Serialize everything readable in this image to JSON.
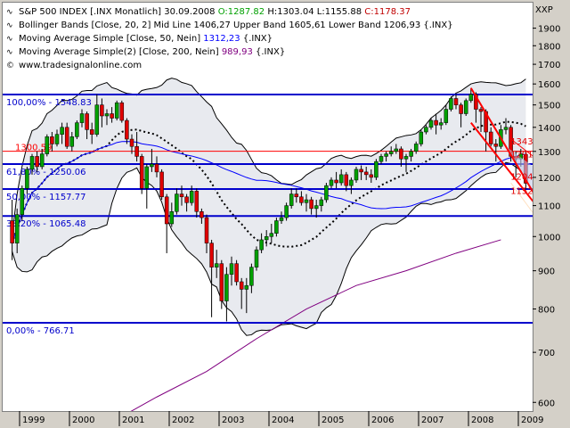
{
  "chart_data": {
    "type": "candlestick",
    "title": "S&P 500 INDEX [.INX  Monatlich]",
    "date": "30.09.2008",
    "ohlc_labels": {
      "open": "O:1287.82",
      "high": "H:1303.04",
      "low": "L:1155.88",
      "close": "C:1178.37"
    },
    "ohlc_colors": {
      "open": "#00a000",
      "close": "#c00000"
    },
    "currency_label": "XXP",
    "watermark": "www.tradesignalonline.com",
    "legend": [
      {
        "icon": "wave-icon",
        "text": "Bollinger Bands [Close, 20, 2] Mid Line 1406,27 Upper Band 1605,61 Lower Band 1206,93 {.INX}",
        "color": "#000000"
      },
      {
        "icon": "wave-icon",
        "text_prefix": "Moving Average Simple [Close, 50, Nein] ",
        "value": "1312,23",
        "suffix": " {.INX}",
        "color": "#0000ff"
      },
      {
        "icon": "wave-icon",
        "text_prefix": "Moving Average Simple(2) [Close, 200, Nein] ",
        "value": "989,93",
        "suffix": " {.INX}",
        "color": "#800080"
      }
    ],
    "y_axis": {
      "scale": "log",
      "ylim": [
        575,
        2000
      ],
      "ticks": [
        600,
        700,
        800,
        900,
        1000,
        1100,
        1200,
        1300,
        1400,
        1500,
        1600,
        1700,
        1800,
        1900
      ]
    },
    "x_axis": {
      "labels": [
        "1999",
        "2000",
        "2001",
        "2002",
        "2003",
        "2004",
        "2005",
        "2006",
        "2007",
        "2008",
        "2009"
      ],
      "start_year": 1998.5,
      "end_year": 2009.6
    },
    "fib_levels": [
      {
        "label": "100,00% - 1548.83",
        "value": 1548.83,
        "color": "#0000cc"
      },
      {
        "label": "61,80% - 1250.06",
        "value": 1250.06,
        "color": "#0000cc"
      },
      {
        "label": "50,00% - 1157.77",
        "value": 1157.77,
        "color": "#0000cc"
      },
      {
        "label": "38,20% - 1065.48",
        "value": 1065.48,
        "color": "#0000cc"
      },
      {
        "label": "0,00% - 766.71",
        "value": 766.71,
        "color": "#0000cc"
      }
    ],
    "red_line": {
      "label": "1300.59",
      "value": 1300.59,
      "color": "#ff0000"
    },
    "channel_labels": [
      {
        "label": "1343.52",
        "value": 1343.52
      },
      {
        "label": "1291.08",
        "value": 1291.08
      },
      {
        "label": "1204.25",
        "value": 1204.25
      },
      {
        "label": "1152.46",
        "value": 1152.46
      }
    ],
    "candles": [
      {
        "t": 1998.6,
        "o": 1050,
        "h": 1120,
        "l": 930,
        "c": 980
      },
      {
        "t": 1998.7,
        "o": 980,
        "h": 1090,
        "l": 950,
        "c": 1070
      },
      {
        "t": 1998.8,
        "o": 1070,
        "h": 1170,
        "l": 1050,
        "c": 1160
      },
      {
        "t": 1998.9,
        "o": 1160,
        "h": 1240,
        "l": 1140,
        "c": 1230
      },
      {
        "t": 1999.0,
        "o": 1230,
        "h": 1290,
        "l": 1210,
        "c": 1280
      },
      {
        "t": 1999.1,
        "o": 1280,
        "h": 1300,
        "l": 1220,
        "c": 1240
      },
      {
        "t": 1999.2,
        "o": 1240,
        "h": 1310,
        "l": 1230,
        "c": 1290
      },
      {
        "t": 1999.3,
        "o": 1290,
        "h": 1370,
        "l": 1280,
        "c": 1360
      },
      {
        "t": 1999.4,
        "o": 1360,
        "h": 1380,
        "l": 1300,
        "c": 1330
      },
      {
        "t": 1999.5,
        "o": 1330,
        "h": 1390,
        "l": 1320,
        "c": 1370
      },
      {
        "t": 1999.6,
        "o": 1370,
        "h": 1420,
        "l": 1330,
        "c": 1400
      },
      {
        "t": 1999.7,
        "o": 1400,
        "h": 1420,
        "l": 1310,
        "c": 1320
      },
      {
        "t": 1999.8,
        "o": 1320,
        "h": 1380,
        "l": 1300,
        "c": 1360
      },
      {
        "t": 1999.9,
        "o": 1360,
        "h": 1430,
        "l": 1350,
        "c": 1420
      },
      {
        "t": 2000.0,
        "o": 1420,
        "h": 1480,
        "l": 1400,
        "c": 1460
      },
      {
        "t": 2000.1,
        "o": 1460,
        "h": 1470,
        "l": 1350,
        "c": 1390
      },
      {
        "t": 2000.2,
        "o": 1390,
        "h": 1420,
        "l": 1330,
        "c": 1370
      },
      {
        "t": 2000.3,
        "o": 1370,
        "h": 1550,
        "l": 1360,
        "c": 1500
      },
      {
        "t": 2000.4,
        "o": 1500,
        "h": 1530,
        "l": 1400,
        "c": 1450
      },
      {
        "t": 2000.5,
        "o": 1450,
        "h": 1480,
        "l": 1410,
        "c": 1460
      },
      {
        "t": 2000.6,
        "o": 1460,
        "h": 1490,
        "l": 1420,
        "c": 1440
      },
      {
        "t": 2000.7,
        "o": 1440,
        "h": 1520,
        "l": 1430,
        "c": 1510
      },
      {
        "t": 2000.8,
        "o": 1510,
        "h": 1520,
        "l": 1420,
        "c": 1430
      },
      {
        "t": 2000.9,
        "o": 1430,
        "h": 1440,
        "l": 1330,
        "c": 1350
      },
      {
        "t": 2001.0,
        "o": 1350,
        "h": 1370,
        "l": 1290,
        "c": 1320
      },
      {
        "t": 2001.1,
        "o": 1320,
        "h": 1380,
        "l": 1260,
        "c": 1280
      },
      {
        "t": 2001.2,
        "o": 1280,
        "h": 1290,
        "l": 1140,
        "c": 1160
      },
      {
        "t": 2001.3,
        "o": 1160,
        "h": 1250,
        "l": 1090,
        "c": 1240
      },
      {
        "t": 2001.4,
        "o": 1240,
        "h": 1310,
        "l": 1220,
        "c": 1250
      },
      {
        "t": 2001.5,
        "o": 1250,
        "h": 1280,
        "l": 1200,
        "c": 1220
      },
      {
        "t": 2001.6,
        "o": 1220,
        "h": 1230,
        "l": 1120,
        "c": 1130
      },
      {
        "t": 2001.7,
        "o": 1130,
        "h": 1140,
        "l": 950,
        "c": 1040
      },
      {
        "t": 2001.8,
        "o": 1040,
        "h": 1110,
        "l": 1030,
        "c": 1080
      },
      {
        "t": 2001.9,
        "o": 1080,
        "h": 1160,
        "l": 1070,
        "c": 1140
      },
      {
        "t": 2002.0,
        "o": 1140,
        "h": 1170,
        "l": 1100,
        "c": 1130
      },
      {
        "t": 2002.1,
        "o": 1130,
        "h": 1140,
        "l": 1080,
        "c": 1110
      },
      {
        "t": 2002.2,
        "o": 1110,
        "h": 1170,
        "l": 1100,
        "c": 1150
      },
      {
        "t": 2002.3,
        "o": 1150,
        "h": 1160,
        "l": 1060,
        "c": 1080
      },
      {
        "t": 2002.4,
        "o": 1080,
        "h": 1090,
        "l": 1040,
        "c": 1060
      },
      {
        "t": 2002.5,
        "o": 1060,
        "h": 1070,
        "l": 950,
        "c": 980
      },
      {
        "t": 2002.6,
        "o": 980,
        "h": 990,
        "l": 780,
        "c": 910
      },
      {
        "t": 2002.7,
        "o": 910,
        "h": 960,
        "l": 880,
        "c": 920
      },
      {
        "t": 2002.8,
        "o": 920,
        "h": 930,
        "l": 800,
        "c": 820
      },
      {
        "t": 2002.9,
        "o": 820,
        "h": 910,
        "l": 770,
        "c": 890
      },
      {
        "t": 2003.0,
        "o": 890,
        "h": 940,
        "l": 860,
        "c": 920
      },
      {
        "t": 2003.1,
        "o": 920,
        "h": 930,
        "l": 860,
        "c": 870
      },
      {
        "t": 2003.2,
        "o": 870,
        "h": 880,
        "l": 800,
        "c": 850
      },
      {
        "t": 2003.3,
        "o": 850,
        "h": 880,
        "l": 790,
        "c": 860
      },
      {
        "t": 2003.4,
        "o": 860,
        "h": 920,
        "l": 840,
        "c": 910
      },
      {
        "t": 2003.5,
        "o": 910,
        "h": 970,
        "l": 900,
        "c": 960
      },
      {
        "t": 2003.6,
        "o": 960,
        "h": 1010,
        "l": 950,
        "c": 990
      },
      {
        "t": 2003.7,
        "o": 990,
        "h": 1020,
        "l": 970,
        "c": 1000
      },
      {
        "t": 2003.8,
        "o": 1000,
        "h": 1040,
        "l": 980,
        "c": 1010
      },
      {
        "t": 2003.9,
        "o": 1010,
        "h": 1060,
        "l": 1000,
        "c": 1050
      },
      {
        "t": 2004.0,
        "o": 1050,
        "h": 1080,
        "l": 1040,
        "c": 1060
      },
      {
        "t": 2004.1,
        "o": 1060,
        "h": 1110,
        "l": 1050,
        "c": 1100
      },
      {
        "t": 2004.2,
        "o": 1100,
        "h": 1160,
        "l": 1090,
        "c": 1140
      },
      {
        "t": 2004.3,
        "o": 1140,
        "h": 1160,
        "l": 1110,
        "c": 1130
      },
      {
        "t": 2004.4,
        "o": 1130,
        "h": 1150,
        "l": 1100,
        "c": 1110
      },
      {
        "t": 2004.5,
        "o": 1110,
        "h": 1140,
        "l": 1080,
        "c": 1120
      },
      {
        "t": 2004.6,
        "o": 1120,
        "h": 1130,
        "l": 1070,
        "c": 1090
      },
      {
        "t": 2004.7,
        "o": 1090,
        "h": 1120,
        "l": 1060,
        "c": 1100
      },
      {
        "t": 2004.8,
        "o": 1100,
        "h": 1130,
        "l": 1080,
        "c": 1120
      },
      {
        "t": 2004.9,
        "o": 1120,
        "h": 1180,
        "l": 1110,
        "c": 1170
      },
      {
        "t": 2005.0,
        "o": 1170,
        "h": 1200,
        "l": 1160,
        "c": 1190
      },
      {
        "t": 2005.1,
        "o": 1190,
        "h": 1220,
        "l": 1160,
        "c": 1180
      },
      {
        "t": 2005.2,
        "o": 1180,
        "h": 1230,
        "l": 1170,
        "c": 1210
      },
      {
        "t": 2005.3,
        "o": 1210,
        "h": 1220,
        "l": 1150,
        "c": 1170
      },
      {
        "t": 2005.4,
        "o": 1170,
        "h": 1200,
        "l": 1140,
        "c": 1190
      },
      {
        "t": 2005.5,
        "o": 1190,
        "h": 1240,
        "l": 1180,
        "c": 1230
      },
      {
        "t": 2005.6,
        "o": 1230,
        "h": 1245,
        "l": 1190,
        "c": 1220
      },
      {
        "t": 2005.7,
        "o": 1220,
        "h": 1240,
        "l": 1190,
        "c": 1210
      },
      {
        "t": 2005.8,
        "o": 1210,
        "h": 1230,
        "l": 1180,
        "c": 1200
      },
      {
        "t": 2005.9,
        "o": 1200,
        "h": 1270,
        "l": 1190,
        "c": 1260
      },
      {
        "t": 2006.0,
        "o": 1260,
        "h": 1290,
        "l": 1250,
        "c": 1280
      },
      {
        "t": 2006.1,
        "o": 1280,
        "h": 1300,
        "l": 1260,
        "c": 1290
      },
      {
        "t": 2006.2,
        "o": 1290,
        "h": 1320,
        "l": 1280,
        "c": 1300
      },
      {
        "t": 2006.3,
        "o": 1300,
        "h": 1330,
        "l": 1290,
        "c": 1310
      },
      {
        "t": 2006.4,
        "o": 1310,
        "h": 1320,
        "l": 1240,
        "c": 1270
      },
      {
        "t": 2006.5,
        "o": 1270,
        "h": 1290,
        "l": 1220,
        "c": 1280
      },
      {
        "t": 2006.6,
        "o": 1280,
        "h": 1310,
        "l": 1260,
        "c": 1300
      },
      {
        "t": 2006.7,
        "o": 1300,
        "h": 1340,
        "l": 1290,
        "c": 1330
      },
      {
        "t": 2006.8,
        "o": 1330,
        "h": 1390,
        "l": 1320,
        "c": 1380
      },
      {
        "t": 2006.9,
        "o": 1380,
        "h": 1410,
        "l": 1370,
        "c": 1400
      },
      {
        "t": 2007.0,
        "o": 1400,
        "h": 1440,
        "l": 1390,
        "c": 1430
      },
      {
        "t": 2007.1,
        "o": 1430,
        "h": 1460,
        "l": 1370,
        "c": 1410
      },
      {
        "t": 2007.2,
        "o": 1410,
        "h": 1440,
        "l": 1390,
        "c": 1420
      },
      {
        "t": 2007.3,
        "o": 1420,
        "h": 1500,
        "l": 1410,
        "c": 1480
      },
      {
        "t": 2007.4,
        "o": 1480,
        "h": 1540,
        "l": 1470,
        "c": 1530
      },
      {
        "t": 2007.5,
        "o": 1530,
        "h": 1550,
        "l": 1480,
        "c": 1500
      },
      {
        "t": 2007.6,
        "o": 1500,
        "h": 1510,
        "l": 1400,
        "c": 1460
      },
      {
        "t": 2007.7,
        "o": 1460,
        "h": 1530,
        "l": 1450,
        "c": 1520
      },
      {
        "t": 2007.8,
        "o": 1520,
        "h": 1580,
        "l": 1510,
        "c": 1550
      },
      {
        "t": 2007.9,
        "o": 1550,
        "h": 1560,
        "l": 1420,
        "c": 1480
      },
      {
        "t": 2008.0,
        "o": 1480,
        "h": 1490,
        "l": 1380,
        "c": 1470
      },
      {
        "t": 2008.1,
        "o": 1470,
        "h": 1480,
        "l": 1300,
        "c": 1380
      },
      {
        "t": 2008.2,
        "o": 1380,
        "h": 1400,
        "l": 1320,
        "c": 1330
      },
      {
        "t": 2008.3,
        "o": 1330,
        "h": 1350,
        "l": 1260,
        "c": 1320
      },
      {
        "t": 2008.4,
        "o": 1320,
        "h": 1410,
        "l": 1310,
        "c": 1390
      },
      {
        "t": 2008.5,
        "o": 1390,
        "h": 1440,
        "l": 1370,
        "c": 1400
      },
      {
        "t": 2008.6,
        "o": 1400,
        "h": 1410,
        "l": 1260,
        "c": 1280
      },
      {
        "t": 2008.7,
        "o": 1280,
        "h": 1300,
        "l": 1200,
        "c": 1270
      },
      {
        "t": 2008.8,
        "o": 1270,
        "h": 1310,
        "l": 1240,
        "c": 1290
      },
      {
        "t": 2008.9,
        "o": 1287.82,
        "h": 1303.04,
        "l": 1155.88,
        "c": 1178.37
      }
    ]
  }
}
